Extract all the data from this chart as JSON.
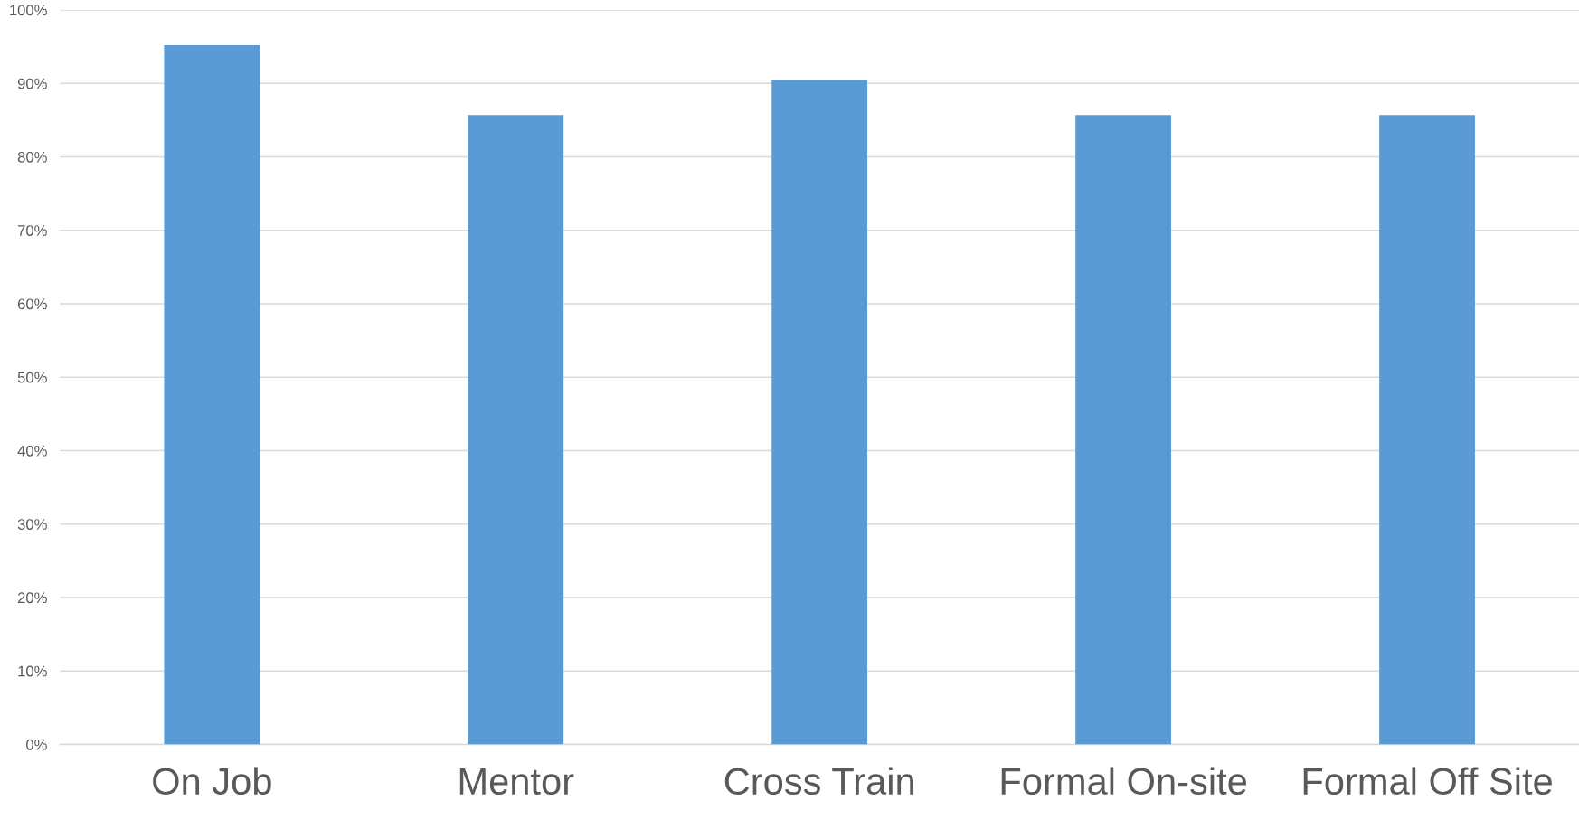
{
  "chart_data": {
    "type": "bar",
    "categories": [
      "On Job",
      "Mentor",
      "Cross Train",
      "Formal On-site",
      "Formal Off Site"
    ],
    "values": [
      95.2,
      85.7,
      90.5,
      85.7,
      85.7
    ],
    "color": "#5b9bd5",
    "ylim": [
      0,
      100
    ],
    "yticks": [
      {
        "value": 0,
        "label": "0%"
      },
      {
        "value": 10,
        "label": "10%"
      },
      {
        "value": 20,
        "label": "20%"
      },
      {
        "value": 30,
        "label": "30%"
      },
      {
        "value": 40,
        "label": "40%"
      },
      {
        "value": 50,
        "label": "50%"
      },
      {
        "value": 60,
        "label": "60%"
      },
      {
        "value": 70,
        "label": "70%"
      },
      {
        "value": 80,
        "label": "80%"
      },
      {
        "value": 90,
        "label": "90%"
      },
      {
        "value": 100,
        "label": "100%"
      }
    ],
    "grid": "y"
  }
}
